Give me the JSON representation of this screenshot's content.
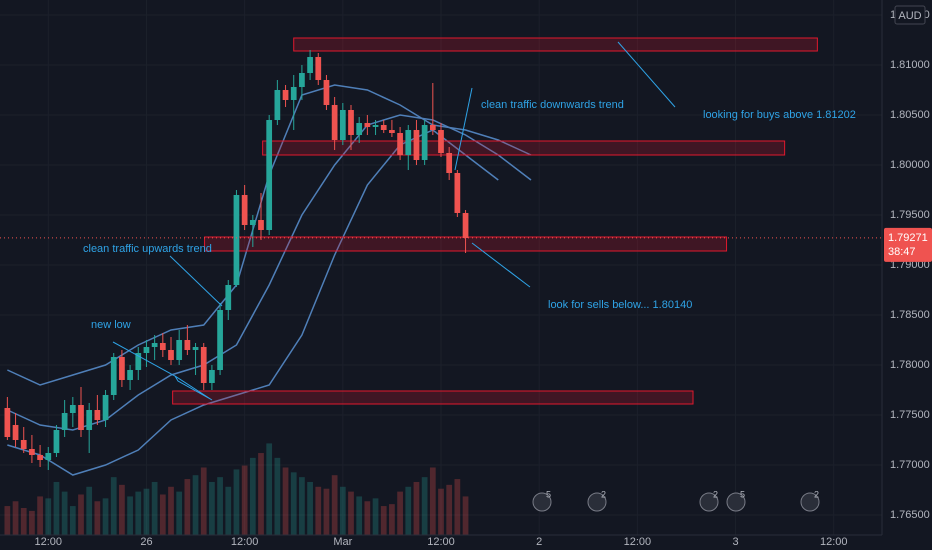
{
  "chart_data": {
    "type": "candlestick",
    "currency": "AUD",
    "grid": true,
    "up_color": "#26a69a",
    "down_color": "#ef5350",
    "band_color": "#4f7fb8",
    "zone_color": "#e0182d",
    "xlim": [
      -0.9,
      106.9
    ],
    "xticks": [
      {
        "value": 5,
        "label": "12:00"
      },
      {
        "value": 17,
        "label": "26"
      },
      {
        "value": 29,
        "label": "12:00"
      },
      {
        "value": 41,
        "label": "Mar"
      },
      {
        "value": 53,
        "label": "12:00"
      },
      {
        "value": 65,
        "label": "2"
      },
      {
        "value": 77,
        "label": "12:00"
      },
      {
        "value": 89,
        "label": "3"
      },
      {
        "value": 101,
        "label": "12:00"
      }
    ],
    "ylim": [
      1.763,
      1.8165
    ],
    "yticks": [
      {
        "value": 1.815,
        "label": "1.81500"
      },
      {
        "value": 1.81,
        "label": "1.81000"
      },
      {
        "value": 1.805,
        "label": "1.80500"
      },
      {
        "value": 1.8,
        "label": "1.80000"
      },
      {
        "value": 1.795,
        "label": "1.79500"
      },
      {
        "value": 1.79,
        "label": "1.79000"
      },
      {
        "value": 1.785,
        "label": "1.78500"
      },
      {
        "value": 1.78,
        "label": "1.78000"
      },
      {
        "value": 1.775,
        "label": "1.77500"
      },
      {
        "value": 1.77,
        "label": "1.77000"
      },
      {
        "value": 1.765,
        "label": "1.76500"
      }
    ],
    "open": [
      1.7757,
      1.774,
      1.7725,
      1.7716,
      1.771,
      1.7705,
      1.7712,
      1.7735,
      1.7752,
      1.776,
      1.7735,
      1.7755,
      1.7745,
      1.777,
      1.7808,
      1.7785,
      1.7795,
      1.7812,
      1.7818,
      1.7822,
      1.7815,
      1.7805,
      1.7825,
      1.7815,
      1.7818,
      1.7782,
      1.7795,
      1.7855,
      1.788,
      1.797,
      1.794,
      1.7945,
      1.7935,
      1.8045,
      1.8075,
      1.8065,
      1.8078,
      1.8092,
      1.8108,
      1.8085,
      1.806,
      1.8025,
      1.8055,
      1.803,
      1.8042,
      1.8038,
      1.804,
      1.8035,
      1.8032,
      1.801,
      1.8035,
      1.8005,
      1.804,
      1.8035,
      1.8012,
      1.7992,
      1.7952
    ],
    "high": [
      1.7768,
      1.7752,
      1.7738,
      1.773,
      1.772,
      1.7718,
      1.774,
      1.7765,
      1.7768,
      1.7778,
      1.7762,
      1.777,
      1.7775,
      1.7812,
      1.7815,
      1.78,
      1.7818,
      1.7825,
      1.783,
      1.7832,
      1.7828,
      1.7835,
      1.784,
      1.7822,
      1.7822,
      1.78,
      1.7862,
      1.7885,
      1.7975,
      1.798,
      1.795,
      1.7972,
      1.805,
      1.8085,
      1.808,
      1.809,
      1.81,
      1.8115,
      1.8112,
      1.809,
      1.8068,
      1.8062,
      1.806,
      1.8048,
      1.805,
      1.8045,
      1.8045,
      1.8045,
      1.8038,
      1.804,
      1.8045,
      1.8045,
      1.8082,
      1.8042,
      1.8018,
      1.7995,
      1.7955
    ],
    "low": [
      1.7725,
      1.7718,
      1.7712,
      1.7702,
      1.7698,
      1.7695,
      1.7708,
      1.7728,
      1.7738,
      1.7728,
      1.7712,
      1.774,
      1.7738,
      1.7765,
      1.7778,
      1.7775,
      1.7785,
      1.7798,
      1.7805,
      1.7808,
      1.78,
      1.78,
      1.781,
      1.779,
      1.7775,
      1.7775,
      1.779,
      1.7845,
      1.7878,
      1.7935,
      1.7918,
      1.7925,
      1.793,
      1.804,
      1.8058,
      1.8035,
      1.8065,
      1.8085,
      1.808,
      1.8055,
      1.8015,
      1.802,
      1.8015,
      1.8022,
      1.803,
      1.803,
      1.8032,
      1.8028,
      1.8005,
      1.7995,
      1.8,
      1.8,
      1.803,
      1.8008,
      1.7985,
      1.7948,
      1.7912
    ],
    "close": [
      1.7728,
      1.7725,
      1.7716,
      1.771,
      1.7705,
      1.7712,
      1.7735,
      1.7752,
      1.776,
      1.7735,
      1.7755,
      1.7745,
      1.777,
      1.7808,
      1.7785,
      1.7795,
      1.7812,
      1.7818,
      1.7822,
      1.7815,
      1.7805,
      1.7825,
      1.7815,
      1.7818,
      1.7782,
      1.7795,
      1.7855,
      1.788,
      1.797,
      1.794,
      1.7945,
      1.7935,
      1.8045,
      1.8075,
      1.8065,
      1.8078,
      1.8092,
      1.8108,
      1.8085,
      1.806,
      1.8025,
      1.8055,
      1.803,
      1.8042,
      1.8038,
      1.804,
      1.8035,
      1.8032,
      1.801,
      1.8035,
      1.8005,
      1.804,
      1.8035,
      1.8012,
      1.7992,
      1.7952,
      1.7927
    ],
    "volume": [
      30,
      35,
      28,
      25,
      40,
      38,
      55,
      45,
      30,
      42,
      50,
      35,
      38,
      60,
      52,
      40,
      45,
      48,
      55,
      42,
      50,
      45,
      58,
      62,
      70,
      55,
      60,
      50,
      68,
      72,
      80,
      85,
      95,
      80,
      70,
      65,
      60,
      55,
      50,
      48,
      62,
      50,
      45,
      40,
      35,
      38,
      30,
      32,
      45,
      50,
      55,
      60,
      70,
      48,
      52,
      58,
      40
    ],
    "y2lim": [
      0,
      140
    ],
    "bands": [
      {
        "x": [
          0,
          4,
          8,
          12,
          16,
          20,
          24,
          28,
          32,
          36,
          40,
          44,
          48,
          52,
          56,
          60,
          64
        ],
        "values": [
          1.7795,
          1.778,
          1.779,
          1.78,
          1.782,
          1.7835,
          1.784,
          1.788,
          1.799,
          1.807,
          1.808,
          1.8075,
          1.806,
          1.804,
          1.8035,
          1.8025,
          1.801
        ]
      },
      {
        "x": [
          0,
          4,
          8,
          12,
          16,
          20,
          24,
          28,
          32,
          36,
          40,
          44,
          48,
          52,
          56,
          60,
          64
        ],
        "values": [
          1.7755,
          1.774,
          1.7735,
          1.7745,
          1.777,
          1.779,
          1.78,
          1.782,
          1.788,
          1.795,
          1.8,
          1.804,
          1.805,
          1.8045,
          1.803,
          1.801,
          1.7985
        ]
      },
      {
        "x": [
          0,
          4,
          8,
          12,
          16,
          20,
          24,
          28,
          32,
          36,
          40,
          44,
          48,
          52,
          56,
          60
        ],
        "values": [
          1.772,
          1.771,
          1.769,
          1.77,
          1.7715,
          1.7745,
          1.776,
          1.777,
          1.778,
          1.783,
          1.791,
          1.798,
          1.802,
          1.8035,
          1.801,
          1.7985
        ]
      }
    ],
    "zones": [
      {
        "x": [
          35,
          99
        ],
        "y": [
          1.8127,
          1.8114
        ]
      },
      {
        "x": [
          31.2,
          95
        ],
        "y": [
          1.8024,
          1.801
        ]
      },
      {
        "x": [
          24.1,
          87.9
        ],
        "y": [
          1.7928,
          1.7914
        ]
      },
      {
        "x": [
          20.2,
          83.8
        ],
        "y": [
          1.7774,
          1.7761
        ]
      }
    ],
    "last_price": {
      "value": 1.79271,
      "label": "1.79271"
    },
    "countdown": "38:47",
    "annotations": [
      "clean traffic downwards trend",
      "looking for buys above 1.81202",
      "clean traffic upwards trend",
      "look for sells below... 1.80140",
      "new low"
    ],
    "events": [
      "5",
      "2",
      "2",
      "5",
      "2"
    ]
  }
}
